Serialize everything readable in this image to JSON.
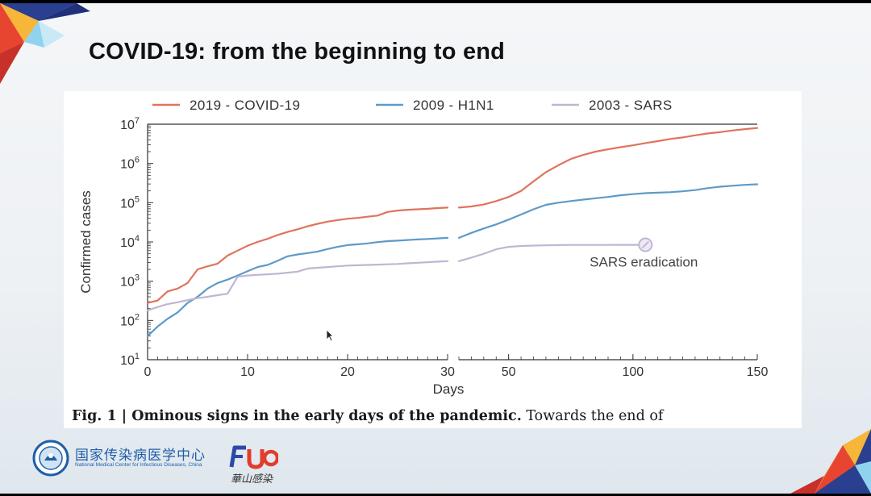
{
  "slide": {
    "title": "COVID-19: from the beginning to end"
  },
  "figure": {
    "caption_bold": "Fig. 1 | Ominous signs in the early days of the pandemic.",
    "caption_rest": " Towards the end of"
  },
  "logos": {
    "nmc_name_cn": "国家传染病医学中心",
    "nmc_name_en": "National Medical Center for Infectious Diseases, China",
    "fud_name_cn": "華山感染"
  },
  "chart_data": {
    "type": "line",
    "xlabel": "Days",
    "ylabel": "Confirmed cases",
    "yscale": "log",
    "ylim": [
      10,
      10000000
    ],
    "y_tick_labels": [
      {
        "base": "10",
        "exp": "1",
        "value": 10
      },
      {
        "base": "10",
        "exp": "2",
        "value": 100
      },
      {
        "base": "10",
        "exp": "3",
        "value": 1000
      },
      {
        "base": "10",
        "exp": "4",
        "value": 10000
      },
      {
        "base": "10",
        "exp": "5",
        "value": 100000
      },
      {
        "base": "10",
        "exp": "6",
        "value": 1000000
      },
      {
        "base": "10",
        "exp": "7",
        "value": 10000000
      }
    ],
    "x_segments": [
      {
        "range": [
          0,
          30
        ],
        "ticks": [
          0,
          10,
          20,
          30
        ],
        "minor_step": 1
      },
      {
        "range": [
          30,
          150
        ],
        "ticks": [
          50,
          100,
          150
        ],
        "minor_step": 5
      }
    ],
    "legend": "top",
    "grid": false,
    "series": [
      {
        "name": "2019 - COVID-19",
        "color": "#e0735d",
        "points": [
          [
            0,
            280
          ],
          [
            1,
            320
          ],
          [
            2,
            550
          ],
          [
            3,
            650
          ],
          [
            4,
            900
          ],
          [
            5,
            2000
          ],
          [
            6,
            2400
          ],
          [
            7,
            2800
          ],
          [
            8,
            4500
          ],
          [
            9,
            6000
          ],
          [
            10,
            8000
          ],
          [
            11,
            10000
          ],
          [
            12,
            12000
          ],
          [
            13,
            15000
          ],
          [
            14,
            18000
          ],
          [
            15,
            21000
          ],
          [
            16,
            25000
          ],
          [
            17,
            29000
          ],
          [
            18,
            33000
          ],
          [
            19,
            36000
          ],
          [
            20,
            39000
          ],
          [
            21,
            41000
          ],
          [
            22,
            44000
          ],
          [
            23,
            47000
          ],
          [
            24,
            58000
          ],
          [
            25,
            63000
          ],
          [
            26,
            66000
          ],
          [
            27,
            68000
          ],
          [
            28,
            70000
          ],
          [
            29,
            73000
          ],
          [
            30,
            75000
          ],
          [
            35,
            80000
          ],
          [
            40,
            90000
          ],
          [
            45,
            110000
          ],
          [
            50,
            140000
          ],
          [
            55,
            200000
          ],
          [
            60,
            350000
          ],
          [
            65,
            600000
          ],
          [
            70,
            900000
          ],
          [
            75,
            1300000
          ],
          [
            80,
            1650000
          ],
          [
            85,
            2000000
          ],
          [
            90,
            2300000
          ],
          [
            95,
            2600000
          ],
          [
            100,
            2900000
          ],
          [
            105,
            3300000
          ],
          [
            110,
            3700000
          ],
          [
            115,
            4200000
          ],
          [
            120,
            4600000
          ],
          [
            125,
            5200000
          ],
          [
            130,
            5800000
          ],
          [
            135,
            6300000
          ],
          [
            140,
            6900000
          ],
          [
            145,
            7500000
          ],
          [
            150,
            8000000
          ]
        ]
      },
      {
        "name": "2009 - H1N1",
        "color": "#5e9ac8",
        "points": [
          [
            0,
            40
          ],
          [
            1,
            70
          ],
          [
            2,
            110
          ],
          [
            3,
            160
          ],
          [
            4,
            280
          ],
          [
            5,
            400
          ],
          [
            6,
            650
          ],
          [
            7,
            900
          ],
          [
            8,
            1100
          ],
          [
            9,
            1400
          ],
          [
            10,
            1800
          ],
          [
            11,
            2300
          ],
          [
            12,
            2600
          ],
          [
            13,
            3300
          ],
          [
            14,
            4300
          ],
          [
            15,
            4800
          ],
          [
            16,
            5200
          ],
          [
            17,
            5700
          ],
          [
            18,
            6600
          ],
          [
            19,
            7500
          ],
          [
            20,
            8300
          ],
          [
            21,
            8700
          ],
          [
            22,
            9200
          ],
          [
            23,
            9900
          ],
          [
            24,
            10500
          ],
          [
            25,
            10800
          ],
          [
            26,
            11200
          ],
          [
            27,
            11600
          ],
          [
            28,
            11900
          ],
          [
            29,
            12300
          ],
          [
            30,
            12700
          ],
          [
            35,
            17000
          ],
          [
            40,
            22000
          ],
          [
            45,
            28000
          ],
          [
            50,
            37000
          ],
          [
            55,
            50000
          ],
          [
            60,
            68000
          ],
          [
            65,
            88000
          ],
          [
            70,
            100000
          ],
          [
            75,
            110000
          ],
          [
            80,
            120000
          ],
          [
            85,
            130000
          ],
          [
            90,
            140000
          ],
          [
            95,
            155000
          ],
          [
            100,
            165000
          ],
          [
            105,
            175000
          ],
          [
            110,
            180000
          ],
          [
            115,
            185000
          ],
          [
            120,
            195000
          ],
          [
            125,
            210000
          ],
          [
            130,
            235000
          ],
          [
            135,
            255000
          ],
          [
            140,
            270000
          ],
          [
            145,
            285000
          ],
          [
            150,
            295000
          ]
        ]
      },
      {
        "name": "2003 - SARS",
        "color": "#c0b6d2",
        "points": [
          [
            0,
            180
          ],
          [
            1,
            220
          ],
          [
            2,
            260
          ],
          [
            3,
            290
          ],
          [
            4,
            330
          ],
          [
            5,
            370
          ],
          [
            6,
            400
          ],
          [
            7,
            440
          ],
          [
            8,
            480
          ],
          [
            9,
            1300
          ],
          [
            10,
            1400
          ],
          [
            11,
            1450
          ],
          [
            12,
            1500
          ],
          [
            13,
            1550
          ],
          [
            14,
            1650
          ],
          [
            15,
            1750
          ],
          [
            16,
            2100
          ],
          [
            17,
            2200
          ],
          [
            18,
            2300
          ],
          [
            19,
            2400
          ],
          [
            20,
            2500
          ],
          [
            21,
            2550
          ],
          [
            22,
            2600
          ],
          [
            23,
            2650
          ],
          [
            24,
            2700
          ],
          [
            25,
            2750
          ],
          [
            26,
            2850
          ],
          [
            27,
            2950
          ],
          [
            28,
            3050
          ],
          [
            29,
            3150
          ],
          [
            30,
            3250
          ],
          [
            35,
            4000
          ],
          [
            40,
            5000
          ],
          [
            45,
            6500
          ],
          [
            50,
            7500
          ],
          [
            55,
            7900
          ],
          [
            60,
            8100
          ],
          [
            65,
            8200
          ],
          [
            70,
            8300
          ],
          [
            75,
            8400
          ],
          [
            80,
            8400
          ],
          [
            85,
            8400
          ],
          [
            90,
            8400
          ],
          [
            95,
            8450
          ],
          [
            100,
            8450
          ],
          [
            105,
            8450
          ]
        ]
      }
    ],
    "annotations": [
      {
        "text": "SARS eradication",
        "x": 105,
        "y": 8450
      }
    ]
  }
}
